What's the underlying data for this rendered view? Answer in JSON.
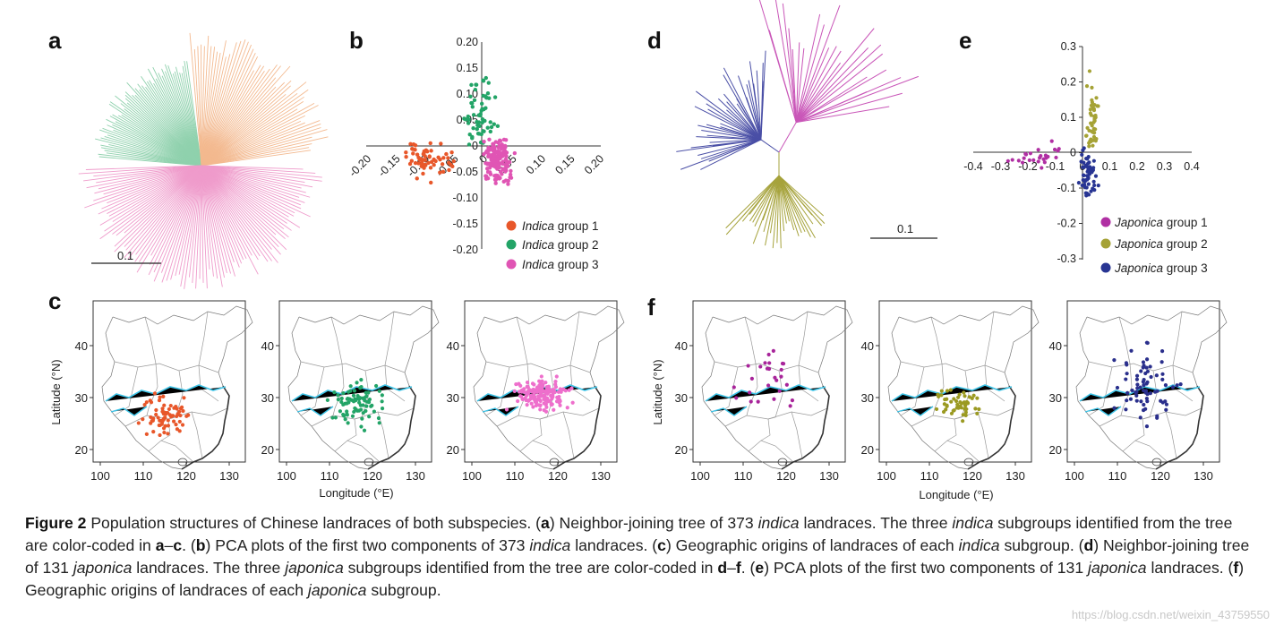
{
  "panels": {
    "a": {
      "label": "a",
      "scale_label": "0.1",
      "colors": [
        "#8fd1ad",
        "#f3b98f",
        "#ef9bcb"
      ]
    },
    "b": {
      "label": "b",
      "colors": {
        "g1": "#e8572a",
        "g2": "#23a467",
        "g3": "#e055b4"
      },
      "x_ticks": [
        "-0.20",
        "-0.15",
        "-0.10",
        "-0.05",
        "0",
        "0.05",
        "0.10",
        "0.15",
        "0.20"
      ],
      "y_ticks": [
        "0.20",
        "0.15",
        "0.10",
        "0.05",
        "0",
        "-0.05",
        "-0.10",
        "-0.15",
        "-0.20"
      ],
      "legend": [
        {
          "name": "Indica",
          "suffix": " group 1",
          "color": "#e8572a"
        },
        {
          "name": "Indica",
          "suffix": " group 2",
          "color": "#23a467"
        },
        {
          "name": "Indica",
          "suffix": " group 3",
          "color": "#e055b4"
        }
      ]
    },
    "c": {
      "label": "c",
      "ylabel": "Latitude (°N)",
      "xlabel": "Longitude (°E)",
      "x_ticks": [
        "100",
        "110",
        "120",
        "130"
      ],
      "y_ticks": [
        "40",
        "30",
        "20"
      ],
      "dot_colors": [
        "#e8572a",
        "#23a467",
        "#ee6fcc"
      ]
    },
    "d": {
      "label": "d",
      "scale_label": "0.1",
      "colors": [
        "#4a4fa6",
        "#c956b8",
        "#a6a33c"
      ]
    },
    "e": {
      "label": "e",
      "colors": {
        "g1": "#b02fa3",
        "g2": "#a5a235",
        "g3": "#283593"
      },
      "x_ticks": [
        "-0.4",
        "-0.3",
        "-0.2",
        "-0.1",
        "0",
        "0.1",
        "0.2",
        "0.3",
        "0.4"
      ],
      "y_ticks": [
        "0.3",
        "0.2",
        "0.1",
        "0",
        "-0.1",
        "-0.2",
        "-0.3"
      ],
      "legend": [
        {
          "name": "Japonica",
          "suffix": " group 1",
          "color": "#b02fa3"
        },
        {
          "name": "Japonica",
          "suffix": " group 2",
          "color": "#a5a235"
        },
        {
          "name": "Japonica",
          "suffix": " group 3",
          "color": "#283593"
        }
      ]
    },
    "f": {
      "label": "f",
      "ylabel": "Latitude (°N)",
      "xlabel": "Longitude (°E)",
      "x_ticks": [
        "100",
        "110",
        "120",
        "130"
      ],
      "y_ticks": [
        "40",
        "30",
        "20"
      ],
      "dot_colors": [
        "#a8249a",
        "#9b9a22",
        "#2a2f8c"
      ]
    }
  },
  "caption": {
    "figure": "Figure 2",
    "s1": "  Population structures of Chinese landraces of both subspecies. (",
    "s2": "a",
    "s3": ") Neighbor-joining tree of 373 ",
    "s4": "indica",
    "s5": " landraces. The three ",
    "s6": "indica",
    "s7": " subgroups identified from the tree are color-coded in ",
    "s8": "a",
    "s9": "–",
    "s10": "c",
    "s11": ". (",
    "s12": "b",
    "s13": ") PCA plots of the first two components of 373 ",
    "s14": "indica",
    "s15": " landraces. (",
    "s16": "c",
    "s17": ") Geographic origins of landraces of each ",
    "s18": "indica",
    "s19": " subgroup. (",
    "s20": "d",
    "s21": ") Neighbor-joining tree of 131 ",
    "s22": "japonica",
    "s23": " landraces. The three ",
    "s24": "japonica",
    "s25": " subgroups identified from the tree are color-coded in ",
    "s26": "d",
    "s27": "–",
    "s28": "f",
    "s29": ". (",
    "s30": "e",
    "s31": ") PCA plots of the first two components of 131 ",
    "s32": "japonica",
    "s33": " landraces. (",
    "s34": "f",
    "s35": ") Geographic origins of landraces of each ",
    "s36": "japonica",
    "s37": " subgroup."
  },
  "watermark": "https://blog.csdn.net/weixin_43759550"
}
